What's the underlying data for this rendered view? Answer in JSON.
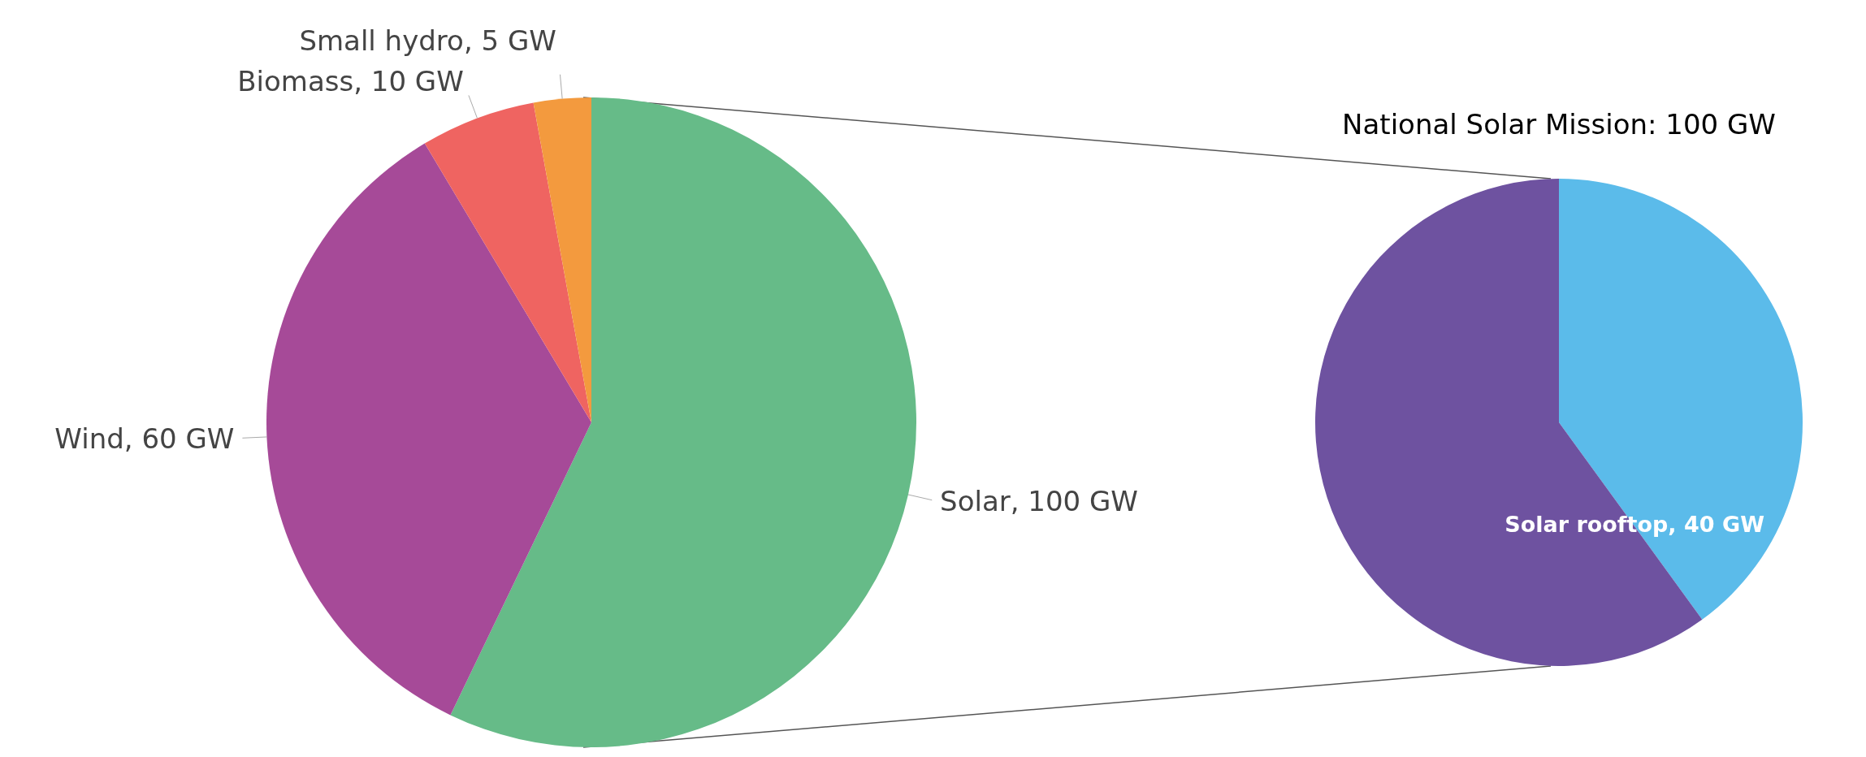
{
  "chart_data": [
    {
      "type": "pie",
      "categories": [
        "Solar",
        "Wind",
        "Biomass",
        "Small hydro"
      ],
      "values": [
        100,
        60,
        10,
        5
      ],
      "value_labels": [
        "100 GW",
        "60 GW",
        "10 GW",
        "5 GW"
      ],
      "colors": [
        "#66bb88",
        "#a64a98",
        "#ef6461",
        "#f39a3e"
      ]
    },
    {
      "type": "pie",
      "title": "National Solar Mission: 100 GW",
      "categories": [
        "Solar rooftop",
        null
      ],
      "values": [
        40,
        60
      ],
      "value_labels": [
        "40 GW",
        null
      ],
      "colors": [
        "#5bbbea",
        "#6e52a0"
      ]
    }
  ]
}
